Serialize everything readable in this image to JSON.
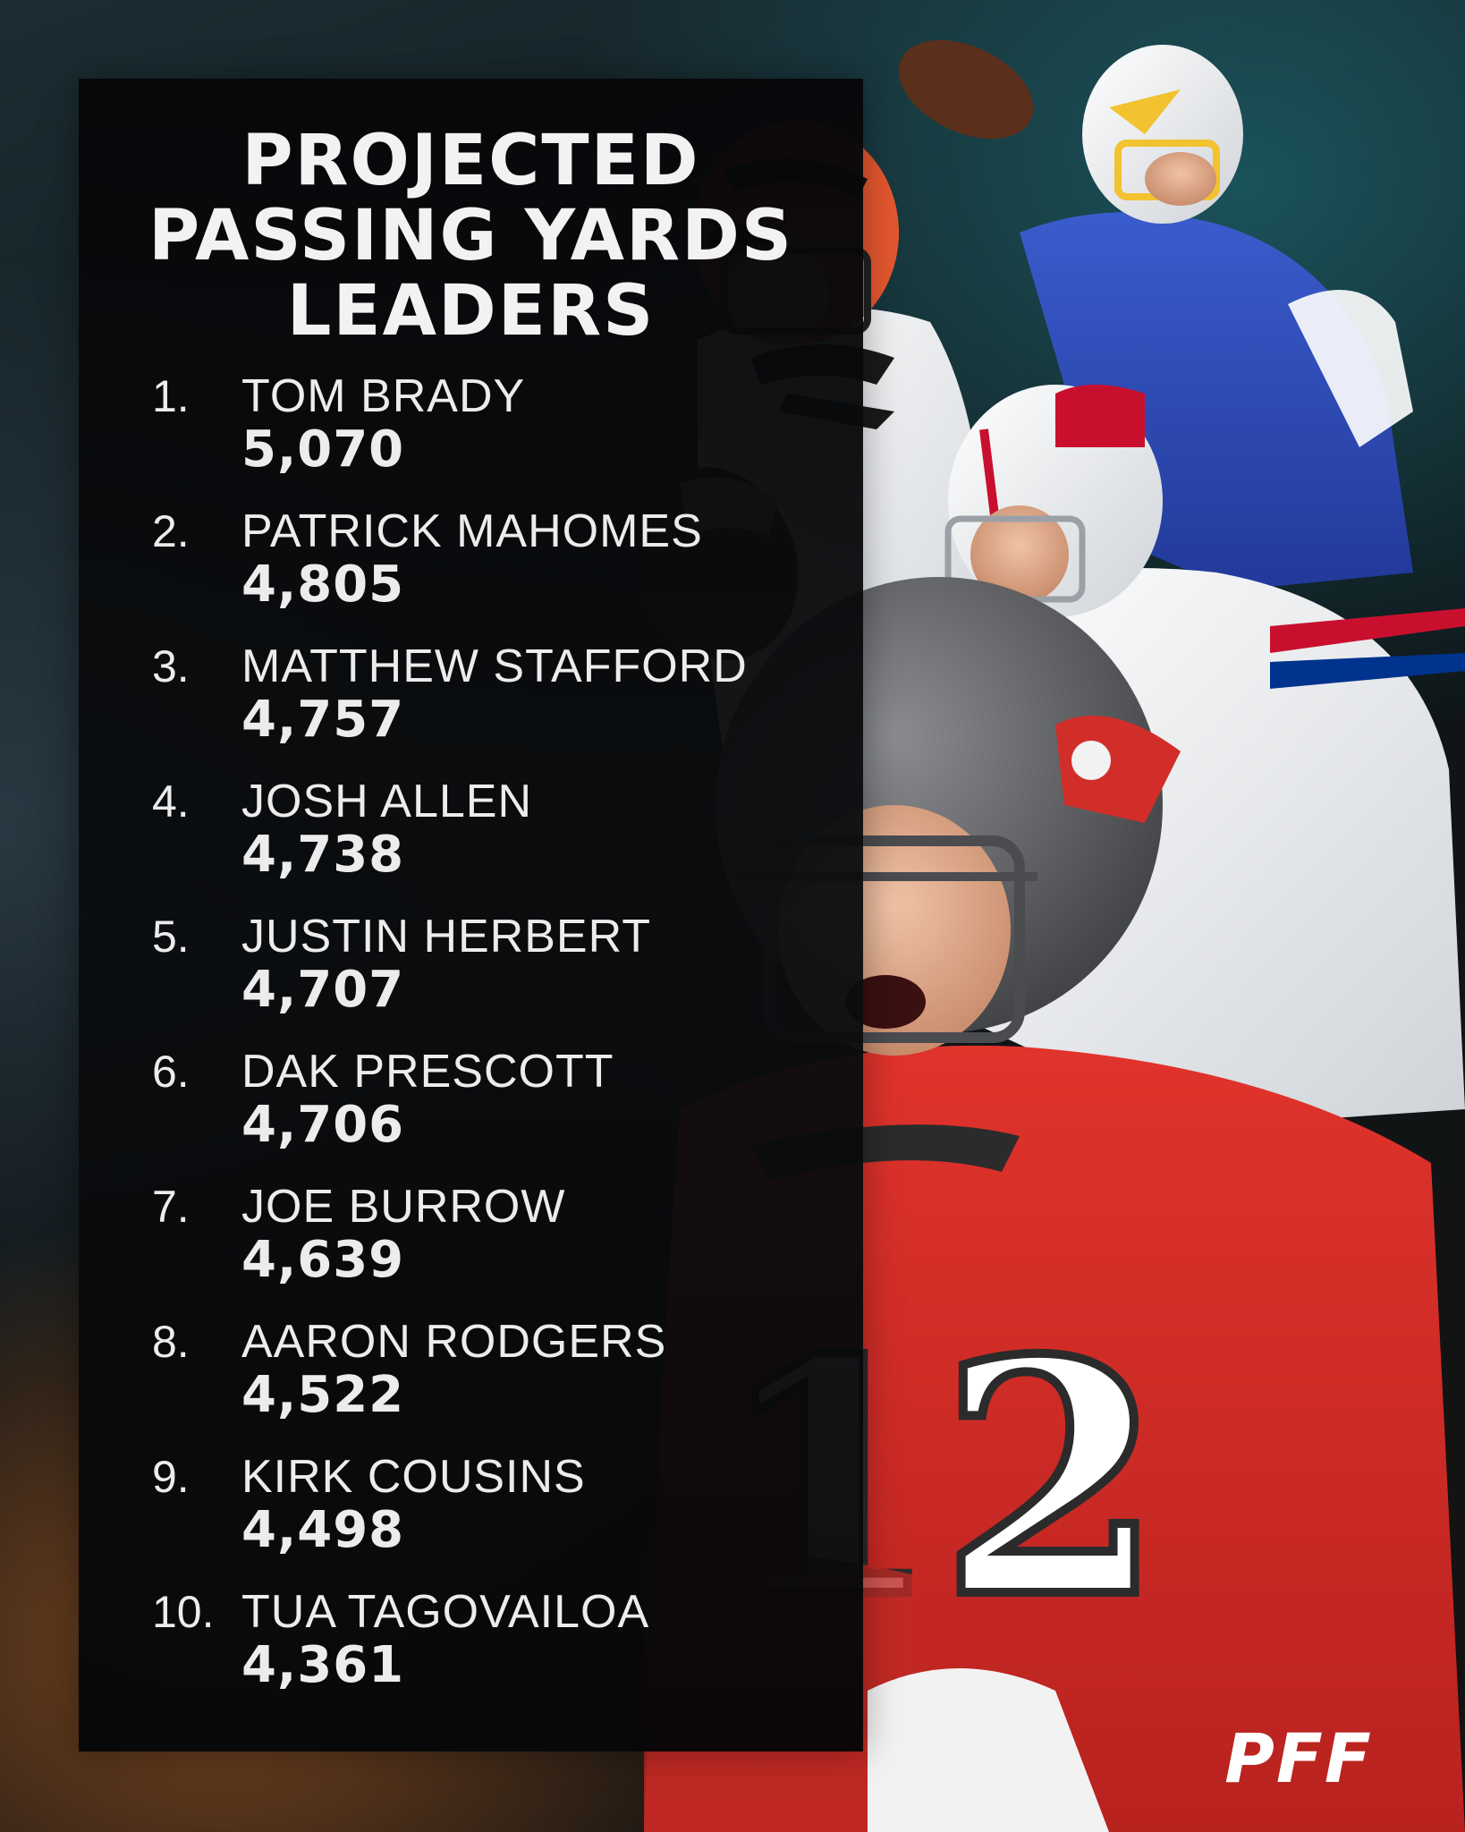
{
  "title_lines": [
    "PROJECTED",
    "PASSING YARDS",
    "LEADERS"
  ],
  "leaders": [
    {
      "rank": "1.",
      "name": "TOM BRADY",
      "yards": "5,070"
    },
    {
      "rank": "2.",
      "name": "PATRICK MAHOMES",
      "yards": "4,805"
    },
    {
      "rank": "3.",
      "name": "MATTHEW STAFFORD",
      "yards": "4,757"
    },
    {
      "rank": "4.",
      "name": "JOSH ALLEN",
      "yards": "4,738"
    },
    {
      "rank": "5.",
      "name": "JUSTIN HERBERT",
      "yards": "4,707"
    },
    {
      "rank": "6.",
      "name": "DAK PRESCOTT",
      "yards": "4,706"
    },
    {
      "rank": "7.",
      "name": "JOE BURROW",
      "yards": "4,639"
    },
    {
      "rank": "8.",
      "name": "AARON RODGERS",
      "yards": "4,522"
    },
    {
      "rank": "9.",
      "name": "KIRK COUSINS",
      "yards": "4,498"
    },
    {
      "rank": "10.",
      "name": "TUA TAGOVAILOA",
      "yards": "4,361"
    }
  ],
  "logo_text": "PFF",
  "colors": {
    "panel": "#08090b",
    "text": "#ececec",
    "buccaneers_red": "#d12e2a",
    "chargers_blue": "#2f4fb8",
    "bills_red": "#c8102e",
    "bengals_orange": "#e4572e"
  },
  "icons": [
    "helmet-bengals-icon",
    "helmet-chargers-icon",
    "helmet-bills-icon",
    "helmet-buccaneers-icon",
    "football-icon",
    "pff-logo-icon"
  ]
}
